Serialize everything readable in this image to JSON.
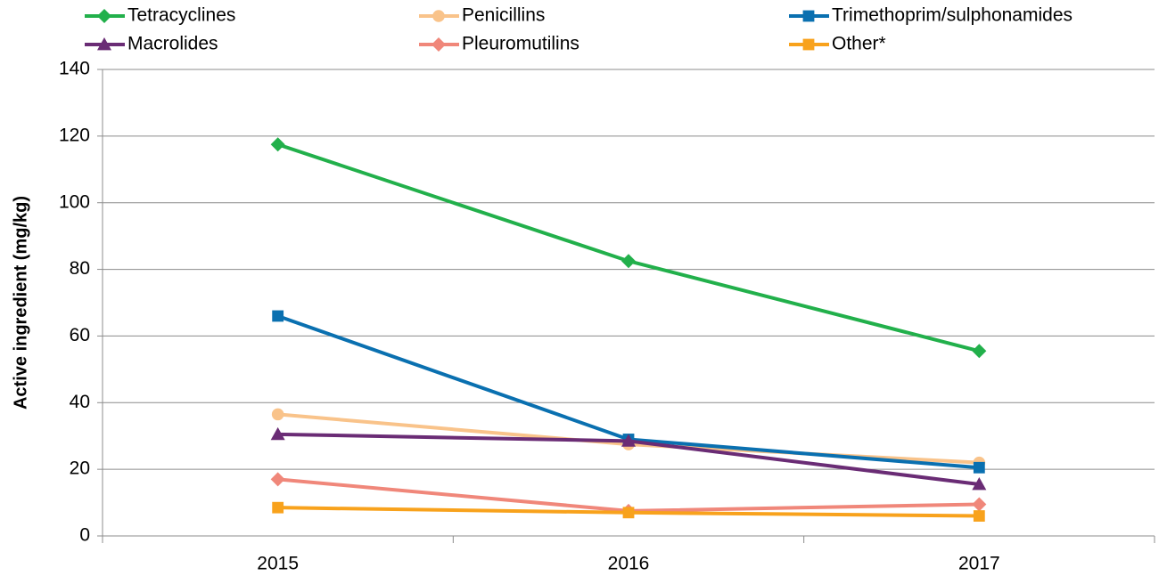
{
  "chart_data": {
    "type": "line",
    "ylabel": "Active ingredient (mg/kg)",
    "categories": [
      "2015",
      "2016",
      "2017"
    ],
    "series": [
      {
        "name": "Tetracyclines",
        "color": "#22b04b",
        "marker": "diamond",
        "values": [
          117.5,
          82.5,
          55.5
        ]
      },
      {
        "name": "Penicillins",
        "color": "#f9c38a",
        "marker": "circle",
        "values": [
          36.5,
          27.5,
          22
        ]
      },
      {
        "name": "Trimethoprim/sulphonamides",
        "color": "#0a70b0",
        "marker": "square",
        "values": [
          66,
          29,
          20.5
        ]
      },
      {
        "name": "Macrolides",
        "color": "#6a2c75",
        "marker": "triangle",
        "values": [
          30.5,
          28.5,
          15.5
        ]
      },
      {
        "name": "Pleuromutilins",
        "color": "#f0877a",
        "marker": "diamond",
        "values": [
          17,
          7.5,
          9.5
        ]
      },
      {
        "name": "Other*",
        "color": "#f8a21c",
        "marker": "square",
        "values": [
          8.5,
          7,
          6
        ]
      }
    ],
    "ylim": [
      0,
      140
    ],
    "yticks": [
      0,
      20,
      40,
      60,
      80,
      100,
      120,
      140
    ],
    "grid": true
  }
}
